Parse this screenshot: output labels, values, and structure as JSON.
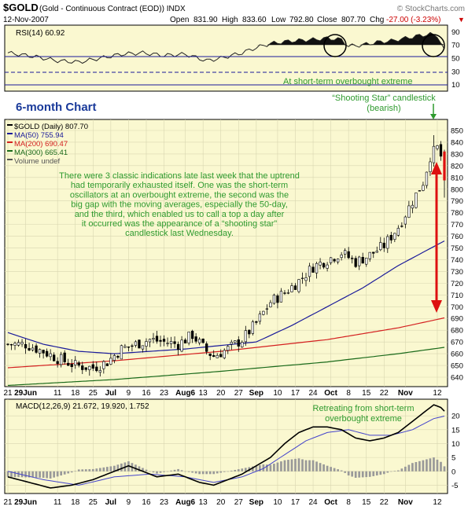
{
  "header": {
    "symbol": "$GOLD",
    "description": "(Gold - Continuous Contract (EOD)) INDX",
    "source": "© StockCharts.com",
    "date": "12-Nov-2007",
    "open_label": "Open",
    "open": "831.90",
    "high_label": "High",
    "high": "833.60",
    "low_label": "Low",
    "low": "792.80",
    "close_label": "Close",
    "close": "807.70",
    "change_label": "Chg",
    "change": "-27.00 (-3.23%)",
    "change_arrow": "▼"
  },
  "rsi_panel": {
    "label": "RSI(14) 60.92",
    "ticks": [
      "90",
      "70",
      "50",
      "30",
      "10"
    ],
    "annotation": "At short-term overbought extreme",
    "levels": [
      70,
      50,
      30
    ],
    "ylim": [
      0,
      100
    ]
  },
  "price_panel": {
    "legend": [
      {
        "text": "$GOLD (Daily) 807.70",
        "color": "#000000"
      },
      {
        "text": "MA(50) 755.94",
        "color": "#1a1a9a"
      },
      {
        "text": "MA(200) 690.47",
        "color": "#d42020"
      },
      {
        "text": "MA(300) 665.41",
        "color": "#1a6a1a"
      },
      {
        "text": "Volume undef",
        "color": "#555555"
      }
    ],
    "label_6month": "6-month Chart",
    "shooting_star_line1": "“Shooting Star” candlestick",
    "shooting_star_line2": "(bearish)",
    "commentary": [
      "There were 3 classic indications late last week that the uptrend",
      "had temporarily exhausted itself. One was the short-term",
      "oscillators at an overbought extreme, the second was the",
      "big gap with the moving averages, especially the 50-day,",
      "and the third, which enabled us to call a top a day after",
      "it occurred was the appearance of a “shooting star”",
      "candlestick last Wednesday."
    ],
    "ticks": [
      "850",
      "840",
      "830",
      "820",
      "810",
      "800",
      "790",
      "780",
      "770",
      "760",
      "750",
      "740",
      "730",
      "720",
      "710",
      "700",
      "690",
      "680",
      "670",
      "660",
      "650",
      "640"
    ],
    "ylim": [
      640,
      850
    ]
  },
  "macd_panel": {
    "label": "MACD(12,26,9) 21.672, 19.920, 1.752",
    "annotation_line1": "Retreating from short-term",
    "annotation_line2": "overbought extreme",
    "ticks": [
      "20",
      "15",
      "10",
      "5",
      "0",
      "-5"
    ],
    "ylim": [
      -8,
      26
    ]
  },
  "x_axis": {
    "labels": [
      "21",
      "29Jun",
      "11",
      "18",
      "25",
      "Jul",
      "9",
      "16",
      "23",
      "Aug6",
      "13",
      "20",
      "27",
      "Sep",
      "10",
      "17",
      "24",
      "Oct",
      "8",
      "15",
      "22",
      "Nov",
      "12"
    ],
    "bold": [
      "29Jun",
      "Jul",
      "Aug6",
      "Sep",
      "Oct",
      "Nov"
    ]
  },
  "colors": {
    "panel_bg": "#faf8d0",
    "grid": "#c8c8c8",
    "rsi_fill": "#111111",
    "ma50": "#1a1a9a",
    "ma200": "#d42020",
    "ma300": "#1a6a1a",
    "annotation_green": "#2e9a2e",
    "red_arrow": "#dd1010",
    "label_blue": "#1a3a9a",
    "macd_hist": "#999999",
    "macd_signal": "#4444cc"
  },
  "chart_data": {
    "type": "line",
    "title": "$GOLD (Gold - Continuous Contract (EOD)) INDX",
    "dates": [
      "2007-05-21",
      "2007-06-29",
      "2007-07-31",
      "2007-08-31",
      "2007-10-01",
      "2007-11-01",
      "2007-11-12"
    ],
    "close_approx": [
      658,
      650,
      665,
      672,
      740,
      800,
      807.7
    ],
    "series": [
      {
        "name": "MA(50)",
        "x": [
          "2007-05-21",
          "2007-06-15",
          "2007-07-15",
          "2007-08-15",
          "2007-09-15",
          "2007-10-15",
          "2007-11-12"
        ],
        "values": [
          678,
          662,
          662,
          668,
          683,
          722,
          755.94
        ]
      },
      {
        "name": "MA(200)",
        "x": [
          "2007-05-21",
          "2007-07-15",
          "2007-09-15",
          "2007-11-12"
        ],
        "values": [
          648,
          656,
          668,
          690.47
        ]
      },
      {
        "name": "MA(300)",
        "x": [
          "2007-05-21",
          "2007-07-15",
          "2007-09-15",
          "2007-11-12"
        ],
        "values": [
          635,
          642,
          650,
          665.41
        ]
      }
    ],
    "ylim": [
      640,
      850
    ]
  }
}
